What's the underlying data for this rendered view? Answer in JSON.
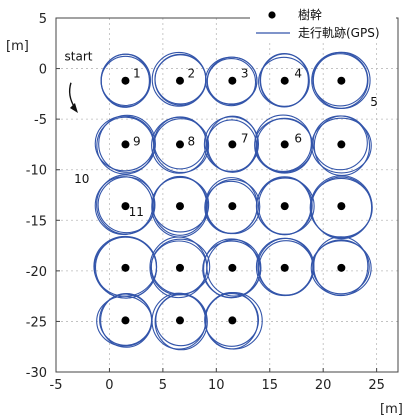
{
  "chart_data": {
    "type": "scatter",
    "title": "",
    "xlabel": "[m]",
    "ylabel": "[m]",
    "xlim": [
      -5,
      27
    ],
    "ylim": [
      -30,
      5
    ],
    "xticks": [
      -5,
      0,
      5,
      10,
      15,
      20,
      25
    ],
    "yticks": [
      5,
      0,
      -5,
      -10,
      -15,
      -20,
      -25,
      -30
    ],
    "grid": true,
    "legend": {
      "placement": "top-right",
      "entries": [
        {
          "label": "樹幹",
          "marker": "dot",
          "color": "#000000"
        },
        {
          "label": "走行軌跡(GPS)",
          "marker": "line",
          "color": "#3355aa"
        }
      ]
    },
    "series": [
      {
        "name": "樹幹",
        "points": [
          {
            "x": 1.5,
            "y": -1.2
          },
          {
            "x": 6.6,
            "y": -1.2
          },
          {
            "x": 11.5,
            "y": -1.2
          },
          {
            "x": 16.4,
            "y": -1.2
          },
          {
            "x": 21.7,
            "y": -1.2
          },
          {
            "x": 1.5,
            "y": -7.5
          },
          {
            "x": 6.6,
            "y": -7.5
          },
          {
            "x": 11.5,
            "y": -7.5
          },
          {
            "x": 16.4,
            "y": -7.5
          },
          {
            "x": 21.7,
            "y": -7.5
          },
          {
            "x": 1.5,
            "y": -13.6
          },
          {
            "x": 6.6,
            "y": -13.6
          },
          {
            "x": 11.5,
            "y": -13.6
          },
          {
            "x": 16.4,
            "y": -13.6
          },
          {
            "x": 21.7,
            "y": -13.6
          },
          {
            "x": 1.5,
            "y": -19.7
          },
          {
            "x": 6.6,
            "y": -19.7
          },
          {
            "x": 11.5,
            "y": -19.7
          },
          {
            "x": 16.4,
            "y": -19.7
          },
          {
            "x": 21.7,
            "y": -19.7
          },
          {
            "x": 1.5,
            "y": -24.9
          },
          {
            "x": 6.6,
            "y": -24.9
          },
          {
            "x": 11.5,
            "y": -24.9
          }
        ]
      },
      {
        "name": "走行軌跡(GPS)",
        "loops": [
          {
            "cx": 1.5,
            "cy": -1.2,
            "r": 2.4
          },
          {
            "cx": 6.6,
            "cy": -1.2,
            "r": 2.4
          },
          {
            "cx": 11.5,
            "cy": -1.2,
            "r": 2.3
          },
          {
            "cx": 16.4,
            "cy": -1.2,
            "r": 2.4
          },
          {
            "cx": 21.7,
            "cy": -1.2,
            "r": 2.6
          },
          {
            "cx": 1.5,
            "cy": -7.5,
            "r": 2.7
          },
          {
            "cx": 6.6,
            "cy": -7.5,
            "r": 2.5
          },
          {
            "cx": 11.5,
            "cy": -7.5,
            "r": 2.5
          },
          {
            "cx": 16.4,
            "cy": -7.5,
            "r": 2.6
          },
          {
            "cx": 21.7,
            "cy": -7.5,
            "r": 2.7
          },
          {
            "cx": 1.5,
            "cy": -13.6,
            "r": 2.8
          },
          {
            "cx": 6.6,
            "cy": -13.6,
            "r": 2.7
          },
          {
            "cx": 11.5,
            "cy": -13.6,
            "r": 2.6
          },
          {
            "cx": 16.4,
            "cy": -13.6,
            "r": 2.6
          },
          {
            "cx": 21.7,
            "cy": -13.6,
            "r": 2.8
          },
          {
            "cx": 1.5,
            "cy": -19.7,
            "r": 2.8
          },
          {
            "cx": 6.6,
            "cy": -19.7,
            "r": 2.7
          },
          {
            "cx": 11.5,
            "cy": -19.7,
            "r": 2.7
          },
          {
            "cx": 16.4,
            "cy": -19.7,
            "r": 2.7
          },
          {
            "cx": 21.7,
            "cy": -19.7,
            "r": 2.7
          },
          {
            "cx": 1.5,
            "cy": -24.9,
            "r": 2.5
          },
          {
            "cx": 6.6,
            "cy": -24.9,
            "r": 2.5
          },
          {
            "cx": 11.5,
            "cy": -24.9,
            "r": 2.6
          }
        ]
      }
    ],
    "annotations": [
      {
        "text": "start",
        "x": -4.2,
        "y": 0.8
      },
      {
        "text": "1",
        "x": 2.2,
        "y": -0.9
      },
      {
        "text": "2",
        "x": 7.3,
        "y": -0.9
      },
      {
        "text": "3",
        "x": 12.3,
        "y": -0.9
      },
      {
        "text": "4",
        "x": 17.3,
        "y": -0.9
      },
      {
        "text": "5",
        "x": 24.4,
        "y": -3.7
      },
      {
        "text": "6",
        "x": 17.3,
        "y": -7.3
      },
      {
        "text": "7",
        "x": 12.3,
        "y": -7.3
      },
      {
        "text": "8",
        "x": 7.3,
        "y": -7.6
      },
      {
        "text": "9",
        "x": 2.2,
        "y": -7.6
      },
      {
        "text": "10",
        "x": -3.3,
        "y": -11.3
      },
      {
        "text": "11",
        "x": 1.8,
        "y": -14.6
      }
    ]
  }
}
